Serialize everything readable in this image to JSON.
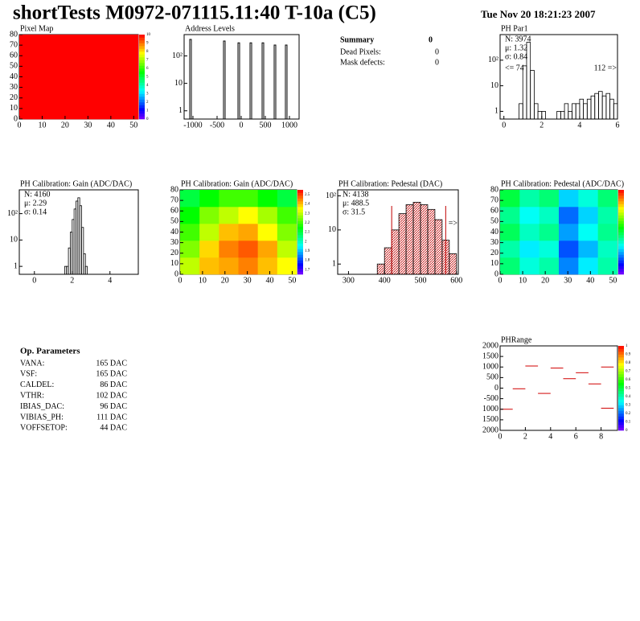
{
  "header": {
    "title": "shortTests M0972-071115.11:40 T-10a (C5)",
    "date": "Tue Nov 20 18:21:23 2007"
  },
  "summary": {
    "title": "Summary",
    "value": 0,
    "rows": [
      [
        "Dead Pixels:",
        0
      ],
      [
        "Mask defects:",
        0
      ]
    ]
  },
  "parameters": {
    "title": "Op. Parameters",
    "rows": [
      [
        "VANA:",
        "165 DAC"
      ],
      [
        "VSF:",
        "165 DAC"
      ],
      [
        "CALDEL:",
        "86 DAC"
      ],
      [
        "VTHR:",
        "102 DAC"
      ],
      [
        "IBIAS_DAC:",
        "96 DAC"
      ],
      [
        "VIBIAS_PH:",
        "111 DAC"
      ],
      [
        "VOFFSETOP:",
        "44 DAC"
      ]
    ]
  },
  "chart_data": [
    {
      "type": "heatmap",
      "title": "Pixel Map",
      "xlim": [
        0,
        52
      ],
      "ylim": [
        0,
        80
      ],
      "xticks": [
        0,
        10,
        20,
        30,
        40,
        50
      ],
      "yticks": [
        0,
        10,
        20,
        30,
        40,
        50,
        60,
        70,
        80
      ],
      "zlim": [
        0,
        10
      ],
      "zticks": [
        0,
        1,
        2,
        3,
        4,
        5,
        6,
        7,
        8,
        9,
        10
      ],
      "z": [
        [
          10
        ]
      ]
    },
    {
      "type": "spikes",
      "title": "Address Levels",
      "log": true,
      "xlim": [
        -1183,
        1200
      ],
      "ylim": [
        0.5,
        600
      ],
      "xticks": [
        -1000,
        -500,
        0,
        500,
        1000
      ],
      "yticks": [
        1,
        10,
        {
          "value": 100,
          "label": "10²"
        }
      ],
      "x": [
        -1050,
        -350,
        -50,
        200,
        450,
        700,
        933
      ],
      "values": [
        400,
        350,
        300,
        300,
        300,
        250,
        250
      ]
    },
    {
      "type": "histogram",
      "title": "PH Par1",
      "log": true,
      "xlim": [
        -0.2,
        6
      ],
      "ylim": [
        0.5,
        1000
      ],
      "xticks": [
        0,
        2,
        4,
        6
      ],
      "yticks": [
        1,
        10,
        {
          "value": 100,
          "label": "10²"
        }
      ],
      "bins": [
        0,
        0.2,
        0.4,
        0.6,
        0.8,
        1,
        1.2,
        1.4,
        1.6,
        1.8,
        2,
        2.2,
        2.4,
        2.6,
        2.8,
        3,
        3.2,
        3.4,
        3.6,
        3.8,
        4,
        4.2,
        4.4,
        4.6,
        4.8,
        5,
        5.2,
        5.4,
        5.6,
        5.8,
        6
      ],
      "counts": [
        0,
        0,
        0,
        0,
        2,
        60,
        500,
        40,
        2,
        1,
        1,
        0,
        0,
        0,
        1,
        1,
        2,
        1,
        2,
        2,
        3,
        2,
        3,
        4,
        5,
        6,
        4,
        5,
        3,
        2
      ],
      "stats": [
        "N: 3974",
        "μ: 1.32",
        "σ: 0.84"
      ],
      "notes": [
        "<= 74",
        "112 =>"
      ]
    },
    {
      "type": "histogram",
      "title": "PH Calibration: Gain (ADC/DAC)",
      "log": true,
      "xlim": [
        -0.8,
        5.5
      ],
      "ylim": [
        0.5,
        800
      ],
      "xticks": [
        0,
        2,
        4
      ],
      "yticks": [
        1,
        10,
        {
          "value": 100,
          "label": "10²"
        }
      ],
      "bins": [
        1.6,
        1.7,
        1.8,
        1.9,
        2,
        2.1,
        2.2,
        2.3,
        2.4,
        2.5,
        2.6,
        2.7,
        2.8
      ],
      "counts": [
        1,
        1,
        5,
        20,
        60,
        150,
        300,
        400,
        200,
        30,
        3,
        1
      ],
      "stats": [
        "N: 4160",
        "μ: 2.29",
        "σ: 0.14"
      ]
    },
    {
      "type": "heatmap",
      "title": "PH Calibration: Gain (ADC/DAC)",
      "xlim": [
        0,
        52
      ],
      "ylim": [
        0,
        80
      ],
      "xticks": [
        0,
        10,
        20,
        30,
        40,
        50
      ],
      "yticks": [
        0,
        10,
        20,
        30,
        40,
        50,
        60,
        70,
        80
      ],
      "zlim": [
        1.65,
        2.55
      ],
      "zticks": [
        1.7,
        1.8,
        1.9,
        2,
        2.1,
        2.2,
        2.3,
        2.4,
        2.5
      ],
      "z": [
        [
          2.3,
          2.4,
          2.42,
          2.45,
          2.4,
          2.35
        ],
        [
          2.25,
          2.38,
          2.45,
          2.48,
          2.42,
          2.3
        ],
        [
          2.2,
          2.3,
          2.4,
          2.42,
          2.35,
          2.25
        ],
        [
          2.15,
          2.25,
          2.3,
          2.35,
          2.28,
          2.2
        ],
        [
          2.1,
          2.15,
          2.2,
          2.2,
          2.15,
          2.1
        ]
      ]
    },
    {
      "type": "histogram",
      "title": "PH Calibration: Pedestal (DAC)",
      "log": true,
      "xlim": [
        270,
        605
      ],
      "ylim": [
        0.5,
        150
      ],
      "xticks": [
        300,
        400,
        500,
        600
      ],
      "yticks": [
        1,
        10,
        {
          "value": 100,
          "label": "10²"
        }
      ],
      "bins": [
        380,
        400,
        420,
        440,
        460,
        480,
        500,
        520,
        540,
        560,
        580,
        600
      ],
      "counts": [
        1,
        3,
        10,
        30,
        55,
        65,
        55,
        40,
        20,
        5,
        2
      ],
      "hatch_color": "#c00000",
      "cut_lines": [
        420,
        570
      ],
      "stats": [
        "N: 4138",
        "μ: 488.5",
        "σ: 31.5"
      ],
      "stats_colors": [
        "#000000",
        "#c00000",
        "#c00000"
      ],
      "notes": [
        "=>"
      ]
    },
    {
      "type": "heatmap",
      "title": "PH Calibration: Pedestal (ADC/DAC)",
      "xlim": [
        0,
        52
      ],
      "ylim": [
        0,
        80
      ],
      "xticks": [
        0,
        10,
        20,
        30,
        40,
        50
      ],
      "yticks": [
        0,
        10,
        20,
        30,
        40,
        50,
        60,
        70,
        80
      ],
      "zlim": [
        380,
        600
      ],
      "z": [
        [
          480,
          460,
          470,
          430,
          450,
          470
        ],
        [
          470,
          450,
          460,
          420,
          440,
          465
        ],
        [
          485,
          465,
          475,
          435,
          455,
          475
        ],
        [
          475,
          455,
          465,
          425,
          445,
          470
        ],
        [
          490,
          470,
          480,
          445,
          460,
          480
        ]
      ]
    },
    {
      "type": "profile",
      "title": "PHRange",
      "color": "#d00000",
      "xlim": [
        0,
        9.3
      ],
      "ylim": [
        -2000,
        2000
      ],
      "xticks": [
        0,
        2,
        4,
        6,
        8
      ],
      "yticks": [
        {
          "value": -2000,
          "label": "2000"
        },
        {
          "value": -1500,
          "label": "1500"
        },
        {
          "value": -1000,
          "label": "1000"
        },
        -500,
        0,
        500,
        1000,
        1500,
        2000
      ],
      "x": [
        0,
        1,
        2,
        3,
        4,
        5,
        6,
        7,
        8,
        8
      ],
      "values": [
        -1000,
        -30,
        1050,
        -250,
        950,
        450,
        730,
        200,
        -950,
        1000
      ],
      "zlim": [
        0,
        1
      ],
      "zticks": [
        0,
        0.1,
        0.2,
        0.3,
        0.4,
        0.5,
        0.6,
        0.7,
        0.8,
        0.9,
        1
      ]
    }
  ]
}
